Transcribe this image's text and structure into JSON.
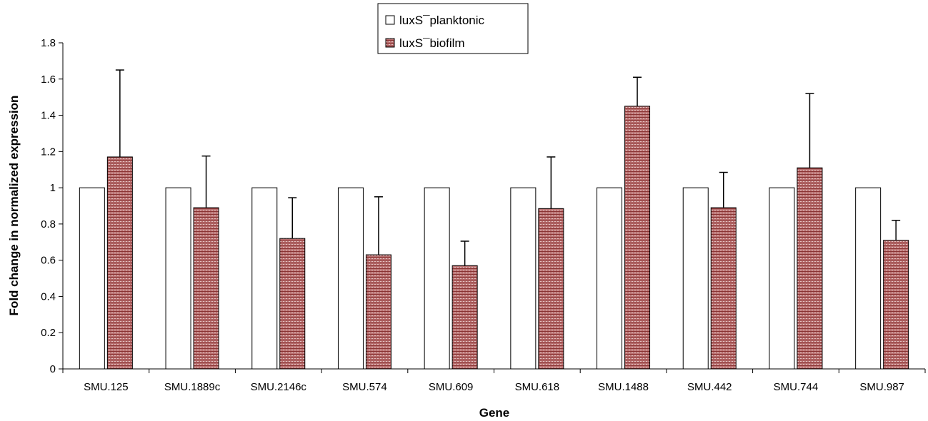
{
  "chart_data": {
    "type": "bar",
    "title": "",
    "xlabel": "Gene",
    "ylabel": "Fold change in normalized expression",
    "ylim": [
      0,
      1.8
    ],
    "ytick_step": 0.2,
    "yticks": [
      "0",
      "0.2",
      "0.4",
      "0.6",
      "0.8",
      "1",
      "1.2",
      "1.4",
      "1.6",
      "1.8"
    ],
    "categories": [
      "SMU.125",
      "SMU.1889c",
      "SMU.2146c",
      "SMU.574",
      "SMU.609",
      "SMU.618",
      "SMU.1488",
      "SMU.442",
      "SMU.744",
      "SMU.987"
    ],
    "series": [
      {
        "name": "luxS¯planktonic",
        "values": [
          1,
          1,
          1,
          1,
          1,
          1,
          1,
          1,
          1,
          1
        ],
        "errors": [
          0,
          0,
          0,
          0,
          0,
          0,
          0,
          0,
          0,
          0
        ],
        "color": "#ffffff"
      },
      {
        "name": "luxS¯biofilm",
        "values": [
          1.17,
          0.89,
          0.72,
          0.63,
          0.57,
          0.885,
          1.45,
          0.89,
          1.11,
          0.71
        ],
        "errors": [
          0.48,
          0.285,
          0.225,
          0.32,
          0.135,
          0.285,
          0.16,
          0.195,
          0.41,
          0.11
        ],
        "color": "#b06a6a"
      }
    ],
    "grid": false,
    "legend_position": "top-center"
  }
}
